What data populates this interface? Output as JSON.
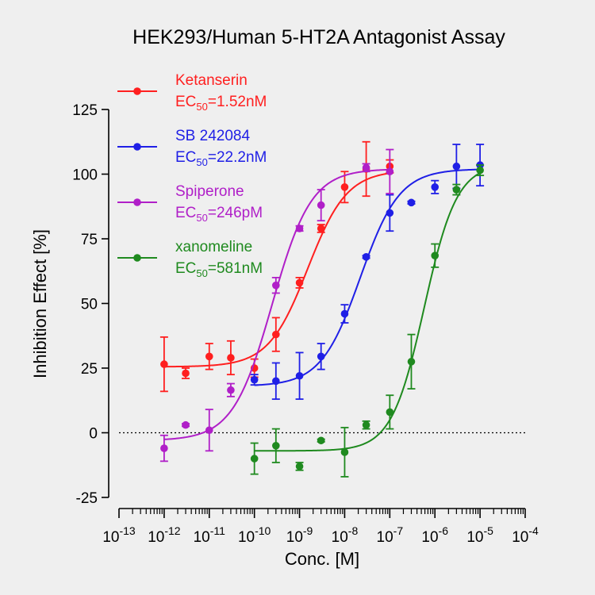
{
  "chart_data": {
    "type": "scatter",
    "title": "HEK293/Human 5-HT2A Antagonist Assay",
    "xlabel": "Conc. [M]",
    "ylabel": "Inhibition Effect [%]",
    "x_scale": "log10",
    "xlim": [
      1e-13,
      0.0001
    ],
    "ylim": [
      -25,
      125
    ],
    "yticks": [
      "-25",
      "0",
      "25",
      "50",
      "75",
      "100",
      "125"
    ],
    "xticks": [
      {
        "base": "10",
        "exp": "-13"
      },
      {
        "base": "10",
        "exp": "-12"
      },
      {
        "base": "10",
        "exp": "-11"
      },
      {
        "base": "10",
        "exp": "-10"
      },
      {
        "base": "10",
        "exp": "-9"
      },
      {
        "base": "10",
        "exp": "-8"
      },
      {
        "base": "10",
        "exp": "-7"
      },
      {
        "base": "10",
        "exp": "-6"
      },
      {
        "base": "10",
        "exp": "-5"
      },
      {
        "base": "10",
        "exp": "-4"
      }
    ],
    "reference_line": {
      "y": 0,
      "style": "dotted"
    },
    "legend_position": "top-left",
    "series": [
      {
        "name": "Ketanserin",
        "ec50_label": {
          "prefix": "EC",
          "sub": "50",
          "suffix": "=1.52nM"
        },
        "color": "#ff1f1f",
        "fit": {
          "bottom": 25.5,
          "top": 101.5,
          "log_ec50": -8.818,
          "hill": 1.0,
          "x_from": 1e-12,
          "x_to": 1e-07
        },
        "points": [
          {
            "x": 1e-12,
            "y": 26.5,
            "err": 10.5
          },
          {
            "x": 3e-12,
            "y": 23.0,
            "err": 2.0
          },
          {
            "x": 1e-11,
            "y": 29.5,
            "err": 5.0
          },
          {
            "x": 3e-11,
            "y": 29.0,
            "err": 6.5
          },
          {
            "x": 1e-10,
            "y": 25.0,
            "err": 3.5
          },
          {
            "x": 3e-10,
            "y": 38.0,
            "err": 6.5
          },
          {
            "x": 1e-09,
            "y": 58.0,
            "err": 2.0
          },
          {
            "x": 3e-09,
            "y": 79.0,
            "err": 1.5
          },
          {
            "x": 1e-08,
            "y": 95.0,
            "err": 6.0
          },
          {
            "x": 3e-08,
            "y": 102.0,
            "err": 10.5
          },
          {
            "x": 1e-07,
            "y": 103.0,
            "err": 2.5
          }
        ]
      },
      {
        "name": "SB 242084",
        "ec50_label": {
          "prefix": "EC",
          "sub": "50",
          "suffix": "=22.2nM"
        },
        "color": "#1f1fe6",
        "fit": {
          "bottom": 18.0,
          "top": 102.0,
          "log_ec50": -7.654,
          "hill": 1.0,
          "x_from": 1e-10,
          "x_to": 1e-05
        },
        "points": [
          {
            "x": 1e-10,
            "y": 20.5,
            "err": 2.0
          },
          {
            "x": 3e-10,
            "y": 20.0,
            "err": 7.0
          },
          {
            "x": 1e-09,
            "y": 22.0,
            "err": 9.0
          },
          {
            "x": 3e-09,
            "y": 29.5,
            "err": 5.0
          },
          {
            "x": 1e-08,
            "y": 46.0,
            "err": 3.5
          },
          {
            "x": 3e-08,
            "y": 68.0,
            "err": 0.5
          },
          {
            "x": 1e-07,
            "y": 85.0,
            "err": 7.0
          },
          {
            "x": 3e-07,
            "y": 89.0,
            "err": 0.5
          },
          {
            "x": 1e-06,
            "y": 95.0,
            "err": 2.5
          },
          {
            "x": 3e-06,
            "y": 103.0,
            "err": 8.5
          },
          {
            "x": 1e-05,
            "y": 103.5,
            "err": 8.0
          }
        ]
      },
      {
        "name": "Spiperone",
        "ec50_label": {
          "prefix": "EC",
          "sub": "50",
          "suffix": "=246pM"
        },
        "color": "#b01fc8",
        "fit": {
          "bottom": -3.0,
          "top": 102.0,
          "log_ec50": -9.609,
          "hill": 1.0,
          "x_from": 1e-12,
          "x_to": 1e-07
        },
        "points": [
          {
            "x": 1e-12,
            "y": -6.0,
            "err": 5.0
          },
          {
            "x": 3e-12,
            "y": 3.0,
            "err": 0.5
          },
          {
            "x": 1e-11,
            "y": 1.0,
            "err": 8.0
          },
          {
            "x": 3e-11,
            "y": 16.5,
            "err": 2.5
          },
          {
            "x": 3e-10,
            "y": 57.0,
            "err": 3.0
          },
          {
            "x": 1e-09,
            "y": 79.0,
            "err": 1.0
          },
          {
            "x": 3e-09,
            "y": 88.0,
            "err": 6.0
          },
          {
            "x": 3e-08,
            "y": 102.5,
            "err": 1.5
          },
          {
            "x": 1e-07,
            "y": 101.0,
            "err": 8.5
          }
        ]
      },
      {
        "name": "xanomeline",
        "ec50_label": {
          "prefix": "EC",
          "sub": "50",
          "suffix": "=581nM"
        },
        "color": "#1f8a1f",
        "fit": {
          "bottom": -7.0,
          "top": 104.0,
          "log_ec50": -6.236,
          "hill": 1.2,
          "x_from": 1e-10,
          "x_to": 1e-05
        },
        "points": [
          {
            "x": 1e-10,
            "y": -10.0,
            "err": 6.0
          },
          {
            "x": 3e-10,
            "y": -5.0,
            "err": 6.5
          },
          {
            "x": 1e-09,
            "y": -13.0,
            "err": 1.5
          },
          {
            "x": 3e-09,
            "y": -3.0,
            "err": 0.5
          },
          {
            "x": 1e-08,
            "y": -7.5,
            "err": 9.5
          },
          {
            "x": 3e-08,
            "y": 3.0,
            "err": 1.5
          },
          {
            "x": 1e-07,
            "y": 8.0,
            "err": 6.5
          },
          {
            "x": 3e-07,
            "y": 27.5,
            "err": 10.5
          },
          {
            "x": 1e-06,
            "y": 68.5,
            "err": 4.5
          },
          {
            "x": 3e-06,
            "y": 94.0,
            "err": 2.0
          },
          {
            "x": 1e-05,
            "y": 101.5,
            "err": 2.0
          }
        ]
      }
    ]
  }
}
